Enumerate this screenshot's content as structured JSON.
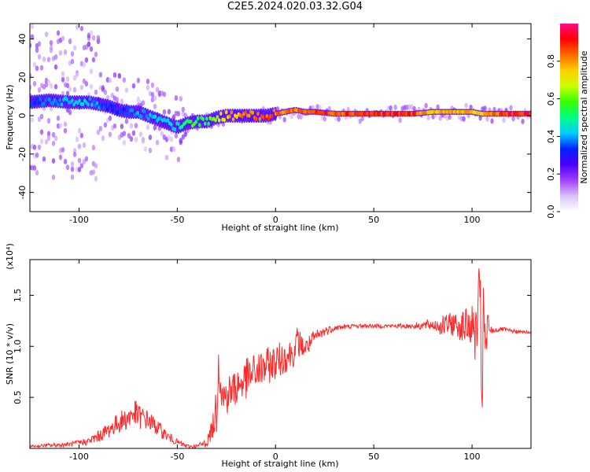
{
  "figure": {
    "title": "C2E5.2024.020.03.32.G04"
  },
  "chart_data": [
    {
      "type": "heatmap",
      "xlabel": "Height of straight line (km)",
      "ylabel": "Frequency (Hz)",
      "xlim": [
        -125,
        130
      ],
      "ylim": [
        -50,
        48
      ],
      "xticks": [
        -100,
        -50,
        0,
        50,
        100
      ],
      "yticks": [
        -40,
        -20,
        0,
        20,
        40
      ],
      "colorbar": {
        "label": "Normalized spectral amplitude",
        "range": [
          0,
          1
        ],
        "ticks": [
          "0.0",
          "0.2",
          "0.4",
          "0.6",
          "0.8"
        ],
        "colors": [
          "#ffffff",
          "#d9c2f5",
          "#a040ff",
          "#4b00ff",
          "#0022ff",
          "#00ccff",
          "#00ff88",
          "#33ff00",
          "#c8ff00",
          "#ffd000",
          "#ff6a00",
          "#ff0000",
          "#ff0a8a"
        ]
      },
      "ridge": {
        "x": [
          -125,
          -115,
          -105,
          -100,
          -95,
          -90,
          -85,
          -80,
          -75,
          -70,
          -65,
          -60,
          -55,
          -50,
          -45,
          -40,
          -35,
          -30,
          -25,
          -20,
          -15,
          -10,
          -5,
          0,
          5,
          10,
          15,
          20,
          30,
          40,
          50,
          60,
          70,
          80,
          90,
          100,
          105,
          110,
          120,
          130
        ],
        "y": [
          7,
          8,
          7,
          7,
          7,
          6,
          5,
          3,
          2,
          2,
          0,
          -2,
          -4,
          -6,
          -4,
          -3,
          -3,
          -1,
          0,
          0,
          0,
          0,
          0,
          1,
          2,
          3,
          2,
          2,
          1,
          1,
          1,
          1,
          1,
          2,
          2,
          2,
          1,
          1,
          1,
          1
        ],
        "amplitude": [
          0.35,
          0.4,
          0.45,
          0.45,
          0.45,
          0.4,
          0.35,
          0.35,
          0.4,
          0.45,
          0.45,
          0.45,
          0.45,
          0.45,
          0.6,
          0.6,
          0.6,
          0.7,
          0.8,
          0.85,
          0.9,
          0.92,
          0.93,
          0.9,
          0.9,
          0.9,
          0.92,
          0.94,
          0.95,
          0.95,
          0.95,
          0.95,
          0.95,
          0.8,
          0.85,
          0.8,
          0.8,
          0.9,
          0.95,
          0.95
        ]
      }
    },
    {
      "type": "line",
      "xlabel": "Height of straight line (km)",
      "ylabel": "SNR (10 * v/v)",
      "ylabel_multiplier": "(x10⁴)",
      "xlim": [
        -125,
        130
      ],
      "ylim": [
        0,
        1.85
      ],
      "xticks": [
        -100,
        -50,
        0,
        50,
        100
      ],
      "yticks": [
        0.5,
        1.0,
        1.5
      ],
      "series": [
        {
          "color": "#ff2a2a",
          "x": [
            -125,
            -115,
            -105,
            -95,
            -90,
            -85,
            -80,
            -75,
            -72,
            -70,
            -68,
            -65,
            -60,
            -55,
            -50,
            -45,
            -40,
            -35,
            -32,
            -30,
            -29,
            -27,
            -25,
            -20,
            -15,
            -10,
            -5,
            0,
            5,
            10,
            11,
            15,
            20,
            25,
            30,
            40,
            50,
            60,
            70,
            80,
            85,
            90,
            95,
            100,
            102,
            104,
            105,
            106,
            107,
            108,
            110,
            115,
            120,
            125,
            130
          ],
          "y": [
            0.02,
            0.03,
            0.04,
            0.07,
            0.12,
            0.18,
            0.25,
            0.3,
            0.35,
            0.32,
            0.3,
            0.28,
            0.2,
            0.12,
            0.06,
            0.02,
            0.02,
            0.06,
            0.2,
            0.4,
            0.9,
            0.5,
            0.52,
            0.6,
            0.68,
            0.75,
            0.8,
            0.85,
            0.9,
            0.95,
            1.05,
            0.98,
            1.08,
            1.15,
            1.18,
            1.2,
            1.2,
            1.2,
            1.2,
            1.21,
            1.2,
            1.22,
            1.2,
            1.2,
            1.1,
            1.5,
            0.6,
            1.3,
            0.9,
            1.2,
            1.15,
            1.17,
            1.15,
            1.14,
            1.14
          ],
          "jitter": [
            0.01,
            0.02,
            0.02,
            0.04,
            0.06,
            0.08,
            0.1,
            0.12,
            0.14,
            0.12,
            0.12,
            0.1,
            0.08,
            0.05,
            0.03,
            0.02,
            0.02,
            0.05,
            0.1,
            0.25,
            0.3,
            0.2,
            0.2,
            0.2,
            0.2,
            0.2,
            0.18,
            0.18,
            0.16,
            0.14,
            0.15,
            0.1,
            0.08,
            0.05,
            0.03,
            0.02,
            0.02,
            0.02,
            0.03,
            0.06,
            0.1,
            0.12,
            0.15,
            0.2,
            0.3,
            0.4,
            0.5,
            0.45,
            0.35,
            0.15,
            0.03,
            0.02,
            0.02,
            0.02,
            0.02
          ]
        }
      ]
    }
  ]
}
